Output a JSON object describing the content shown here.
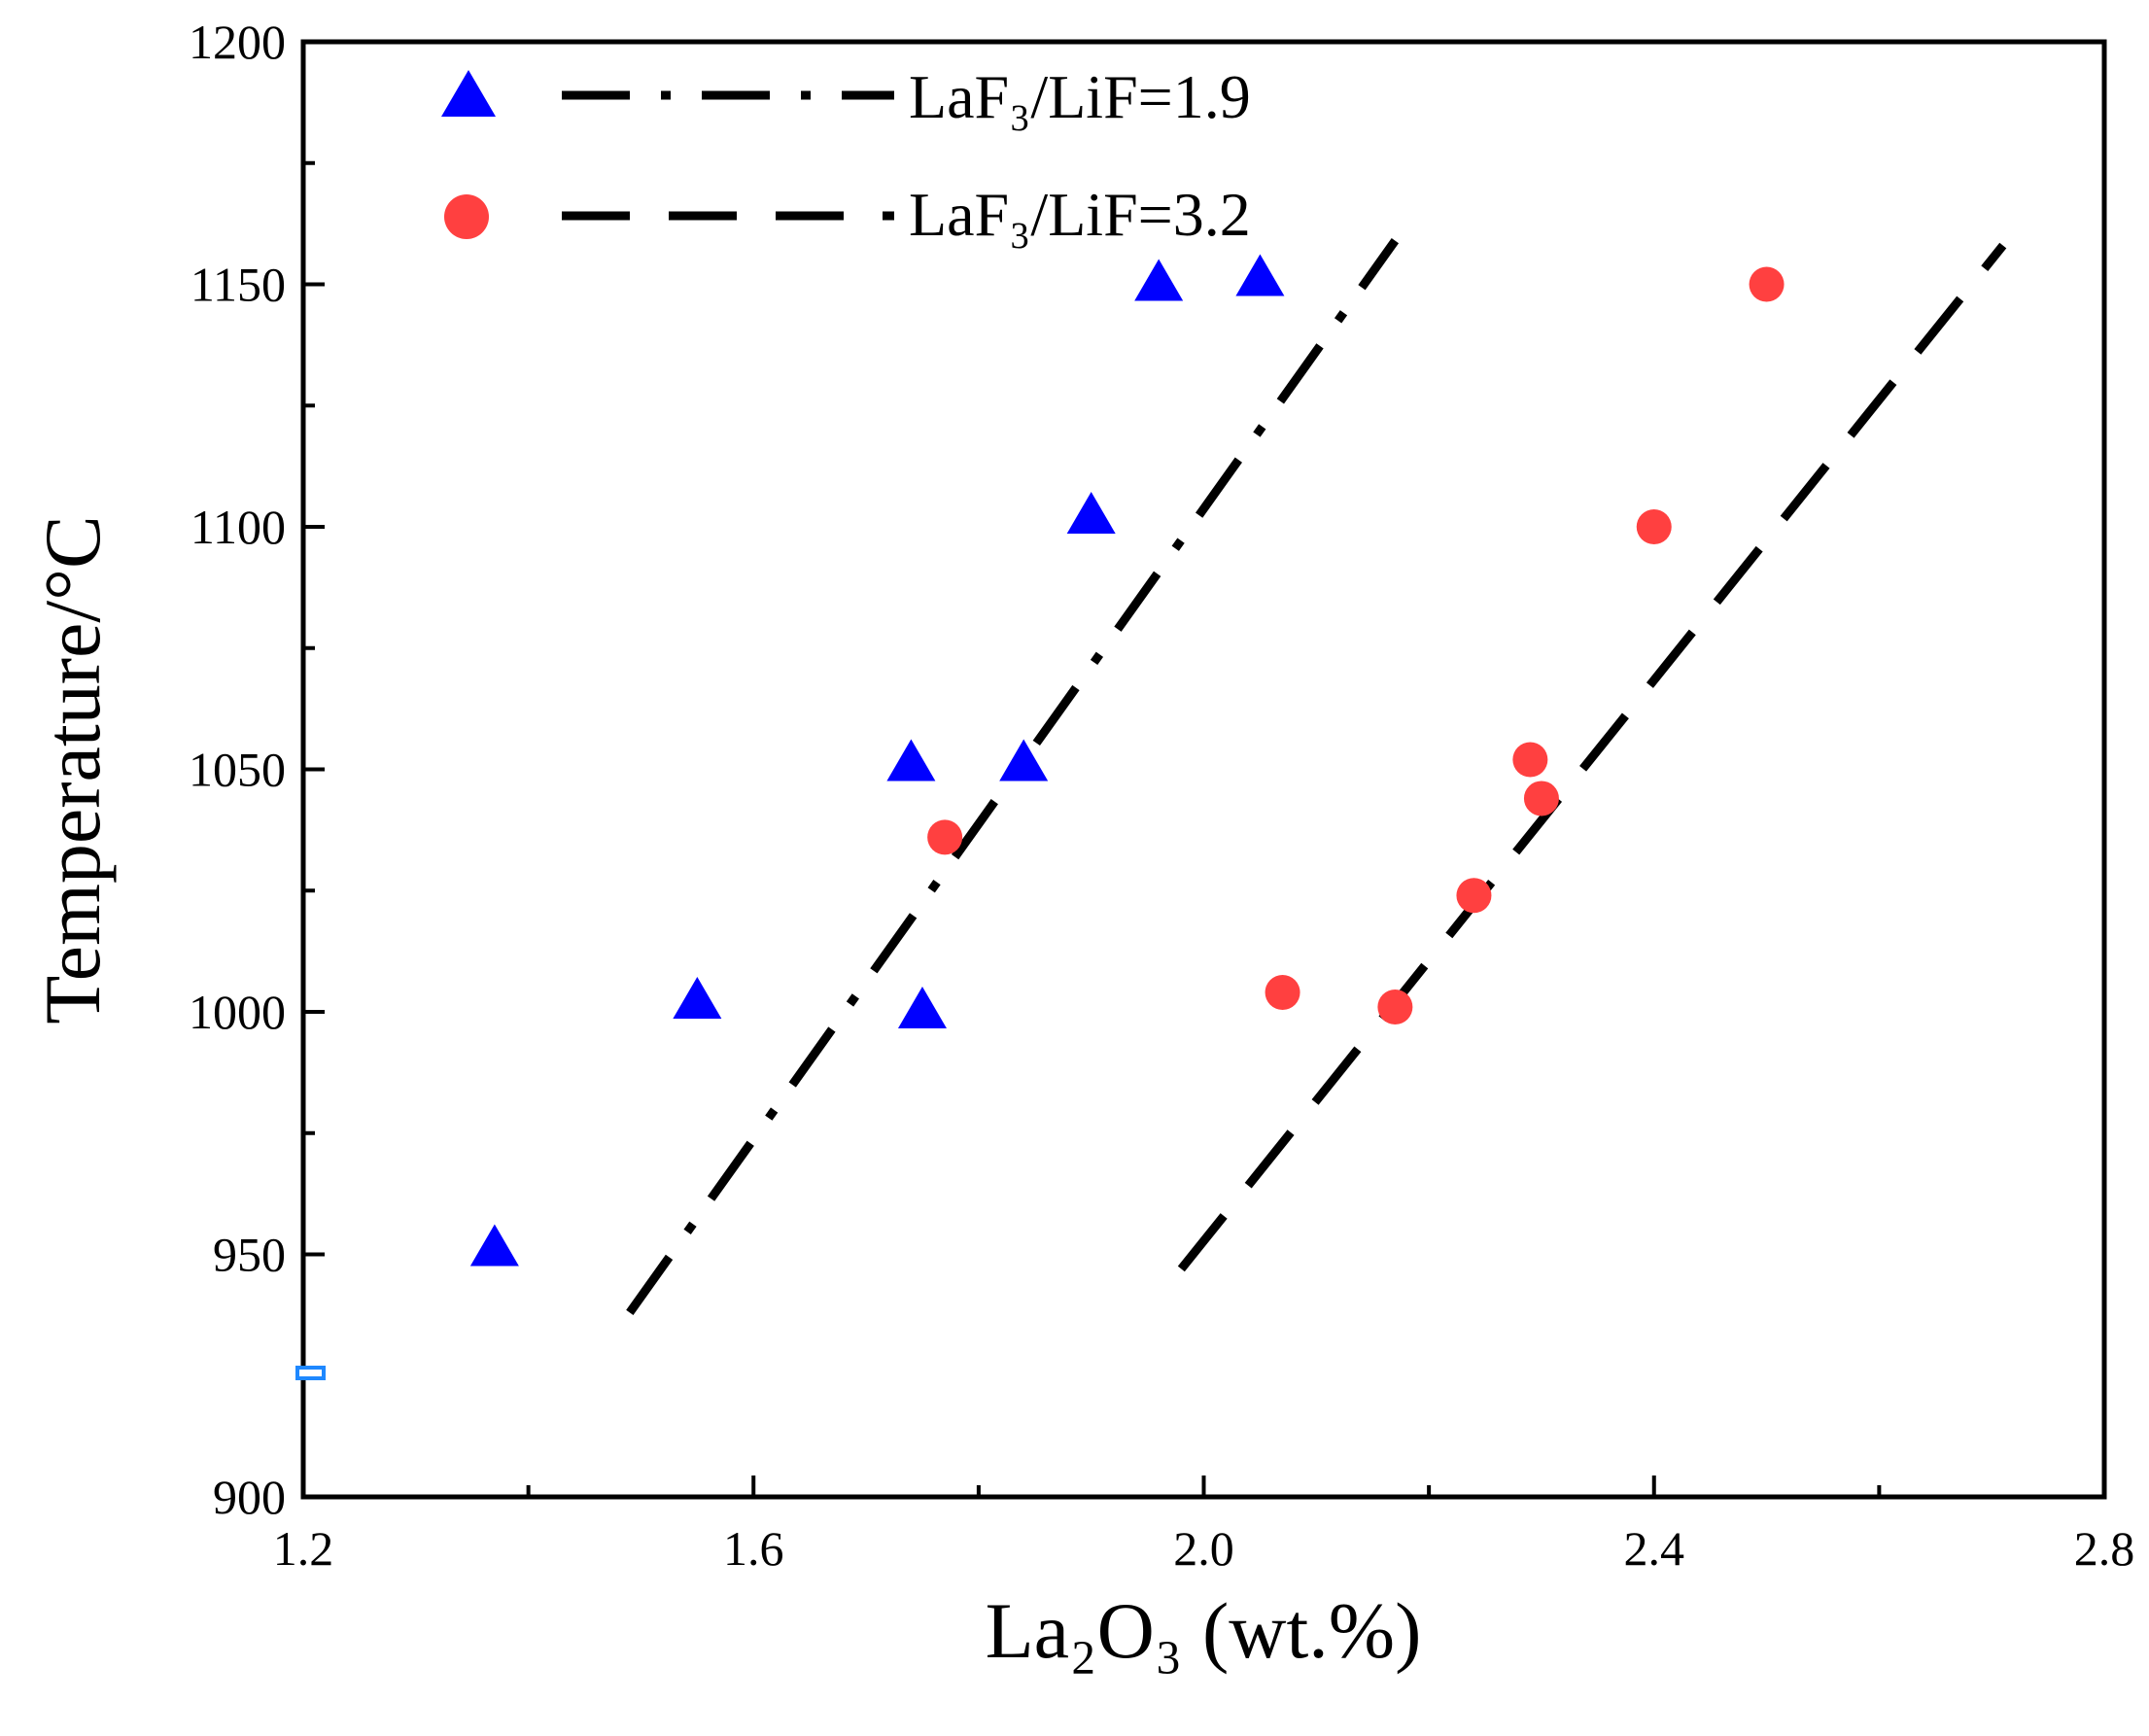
{
  "chart_data": {
    "type": "scatter",
    "title": "",
    "xlabel": "La₂O₃ (wt.%)",
    "ylabel": "Temperature/°C",
    "xlim": [
      1.2,
      2.8
    ],
    "ylim": [
      900,
      1200
    ],
    "x_ticks": [
      "1.2",
      "1.6",
      "2.0",
      "2.4",
      "2.8"
    ],
    "x_tick_values": [
      1.2,
      1.6,
      2.0,
      2.4,
      2.8
    ],
    "y_ticks": [
      "900",
      "950",
      "1000",
      "1050",
      "1100",
      "1150",
      "1200"
    ],
    "y_tick_values": [
      900,
      950,
      1000,
      1050,
      1100,
      1150,
      1200
    ],
    "grid": false,
    "legend_position": "top-left",
    "series": [
      {
        "name": "LaF₃/LiF=1.9",
        "marker": "triangle",
        "color": "#0000ff",
        "line_color": "#000000",
        "line_style": "dash-dot",
        "points": [
          {
            "x": 1.37,
            "y": 951
          },
          {
            "x": 1.55,
            "y": 1002
          },
          {
            "x": 1.75,
            "y": 1000
          },
          {
            "x": 1.74,
            "y": 1051
          },
          {
            "x": 1.84,
            "y": 1051
          },
          {
            "x": 1.9,
            "y": 1102
          },
          {
            "x": 1.96,
            "y": 1150
          },
          {
            "x": 2.05,
            "y": 1151
          }
        ],
        "fit": {
          "x": [
            1.49,
            2.17
          ],
          "y": [
            938,
            1159
          ]
        }
      },
      {
        "name": "LaF₃/LiF=3.2",
        "marker": "circle",
        "color": "#ff4040",
        "line_color": "#000000",
        "line_style": "dash",
        "points": [
          {
            "x": 1.77,
            "y": 1036
          },
          {
            "x": 2.07,
            "y": 1004
          },
          {
            "x": 2.17,
            "y": 1001
          },
          {
            "x": 2.24,
            "y": 1024
          },
          {
            "x": 2.29,
            "y": 1052
          },
          {
            "x": 2.3,
            "y": 1044
          },
          {
            "x": 2.4,
            "y": 1100
          },
          {
            "x": 2.5,
            "y": 1150
          }
        ],
        "fit": {
          "x": [
            1.98,
            2.71
          ],
          "y": [
            947,
            1158
          ]
        }
      }
    ]
  }
}
